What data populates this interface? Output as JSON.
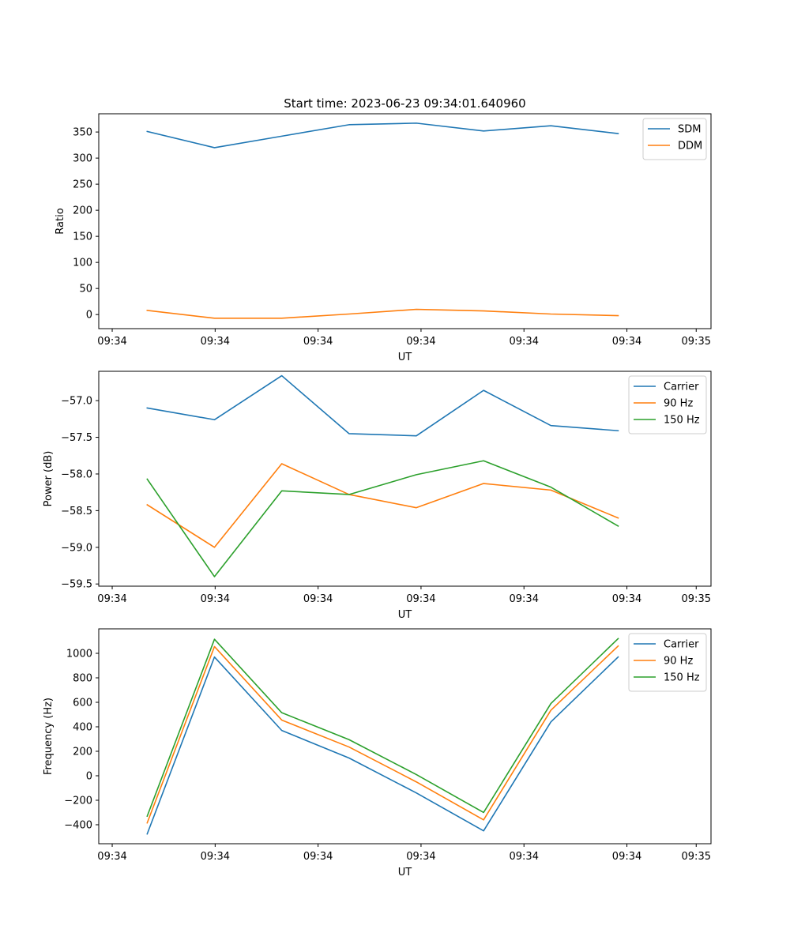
{
  "chart_data": [
    {
      "type": "line",
      "title": "Start time: 2023-06-23 09:34:01.640960",
      "xlabel": "UT",
      "ylabel": "Ratio",
      "x": [
        1,
        2,
        3,
        4,
        5,
        6,
        7,
        8
      ],
      "xlim": [
        0.28,
        9.38
      ],
      "x_ticks": [
        0.48,
        2.01,
        3.54,
        5.07,
        6.6,
        8.13,
        9.16
      ],
      "x_tick_labels": [
        "09:34",
        "09:34",
        "09:34",
        "09:34",
        "09:34",
        "09:34",
        "09:35"
      ],
      "ylim": [
        -27,
        385
      ],
      "y_ticks": [
        0,
        50,
        100,
        150,
        200,
        250,
        300,
        350
      ],
      "y_tick_labels": [
        "0",
        "50",
        "100",
        "150",
        "200",
        "250",
        "300",
        "350"
      ],
      "legend_position": "top-right",
      "grid": false,
      "series": [
        {
          "name": "SDM",
          "color": "#1f77b4",
          "values": [
            351,
            320,
            342,
            364,
            367,
            352,
            362,
            347
          ]
        },
        {
          "name": "DDM",
          "color": "#ff7f0e",
          "values": [
            8,
            -7,
            -7,
            1,
            10,
            7,
            1,
            -2
          ]
        }
      ]
    },
    {
      "type": "line",
      "title": "",
      "xlabel": "UT",
      "ylabel": "Power (dB)",
      "x": [
        1,
        2,
        3,
        4,
        5,
        6,
        7,
        8
      ],
      "xlim": [
        0.28,
        9.38
      ],
      "x_ticks": [
        0.48,
        2.01,
        3.54,
        5.07,
        6.6,
        8.13,
        9.16
      ],
      "x_tick_labels": [
        "09:34",
        "09:34",
        "09:34",
        "09:34",
        "09:34",
        "09:34",
        "09:35"
      ],
      "ylim": [
        -59.53,
        -56.6
      ],
      "y_ticks": [
        -59.5,
        -59.0,
        -58.5,
        -58.0,
        -57.5,
        -57.0
      ],
      "y_tick_labels": [
        "−59.5",
        "−59.0",
        "−58.5",
        "−58.0",
        "−57.5",
        "−57.0"
      ],
      "legend_position": "top-right",
      "grid": false,
      "series": [
        {
          "name": "Carrier",
          "color": "#1f77b4",
          "values": [
            -57.1,
            -57.26,
            -56.66,
            -57.45,
            -57.48,
            -56.86,
            -57.34,
            -57.41
          ]
        },
        {
          "name": "90 Hz",
          "color": "#ff7f0e",
          "values": [
            -58.42,
            -59.0,
            -57.86,
            -58.28,
            -58.46,
            -58.13,
            -58.22,
            -58.6
          ]
        },
        {
          "name": "150 Hz",
          "color": "#2ca02c",
          "values": [
            -58.07,
            -59.4,
            -58.23,
            -58.28,
            -58.01,
            -57.82,
            -58.18,
            -58.71
          ]
        }
      ]
    },
    {
      "type": "line",
      "title": "",
      "xlabel": "UT",
      "ylabel": "Frequency (Hz)",
      "x": [
        1,
        2,
        3,
        4,
        5,
        6,
        7,
        8
      ],
      "xlim": [
        0.28,
        9.38
      ],
      "x_ticks": [
        0.48,
        2.01,
        3.54,
        5.07,
        6.6,
        8.13,
        9.16
      ],
      "x_tick_labels": [
        "09:34",
        "09:34",
        "09:34",
        "09:34",
        "09:34",
        "09:34",
        "09:35"
      ],
      "ylim": [
        -555,
        1200
      ],
      "y_ticks": [
        -400,
        -200,
        0,
        200,
        400,
        600,
        800,
        1000
      ],
      "y_tick_labels": [
        "−400",
        "−200",
        "0",
        "200",
        "400",
        "600",
        "800",
        "1000"
      ],
      "legend_position": "top-right",
      "grid": false,
      "series": [
        {
          "name": "Carrier",
          "color": "#1f77b4",
          "values": [
            -475,
            970,
            370,
            145,
            -140,
            -450,
            440,
            970
          ]
        },
        {
          "name": "90 Hz",
          "color": "#ff7f0e",
          "values": [
            -385,
            1055,
            455,
            235,
            -50,
            -360,
            535,
            1060
          ]
        },
        {
          "name": "150 Hz",
          "color": "#2ca02c",
          "values": [
            -330,
            1115,
            515,
            295,
            10,
            -300,
            590,
            1120
          ]
        }
      ]
    }
  ]
}
